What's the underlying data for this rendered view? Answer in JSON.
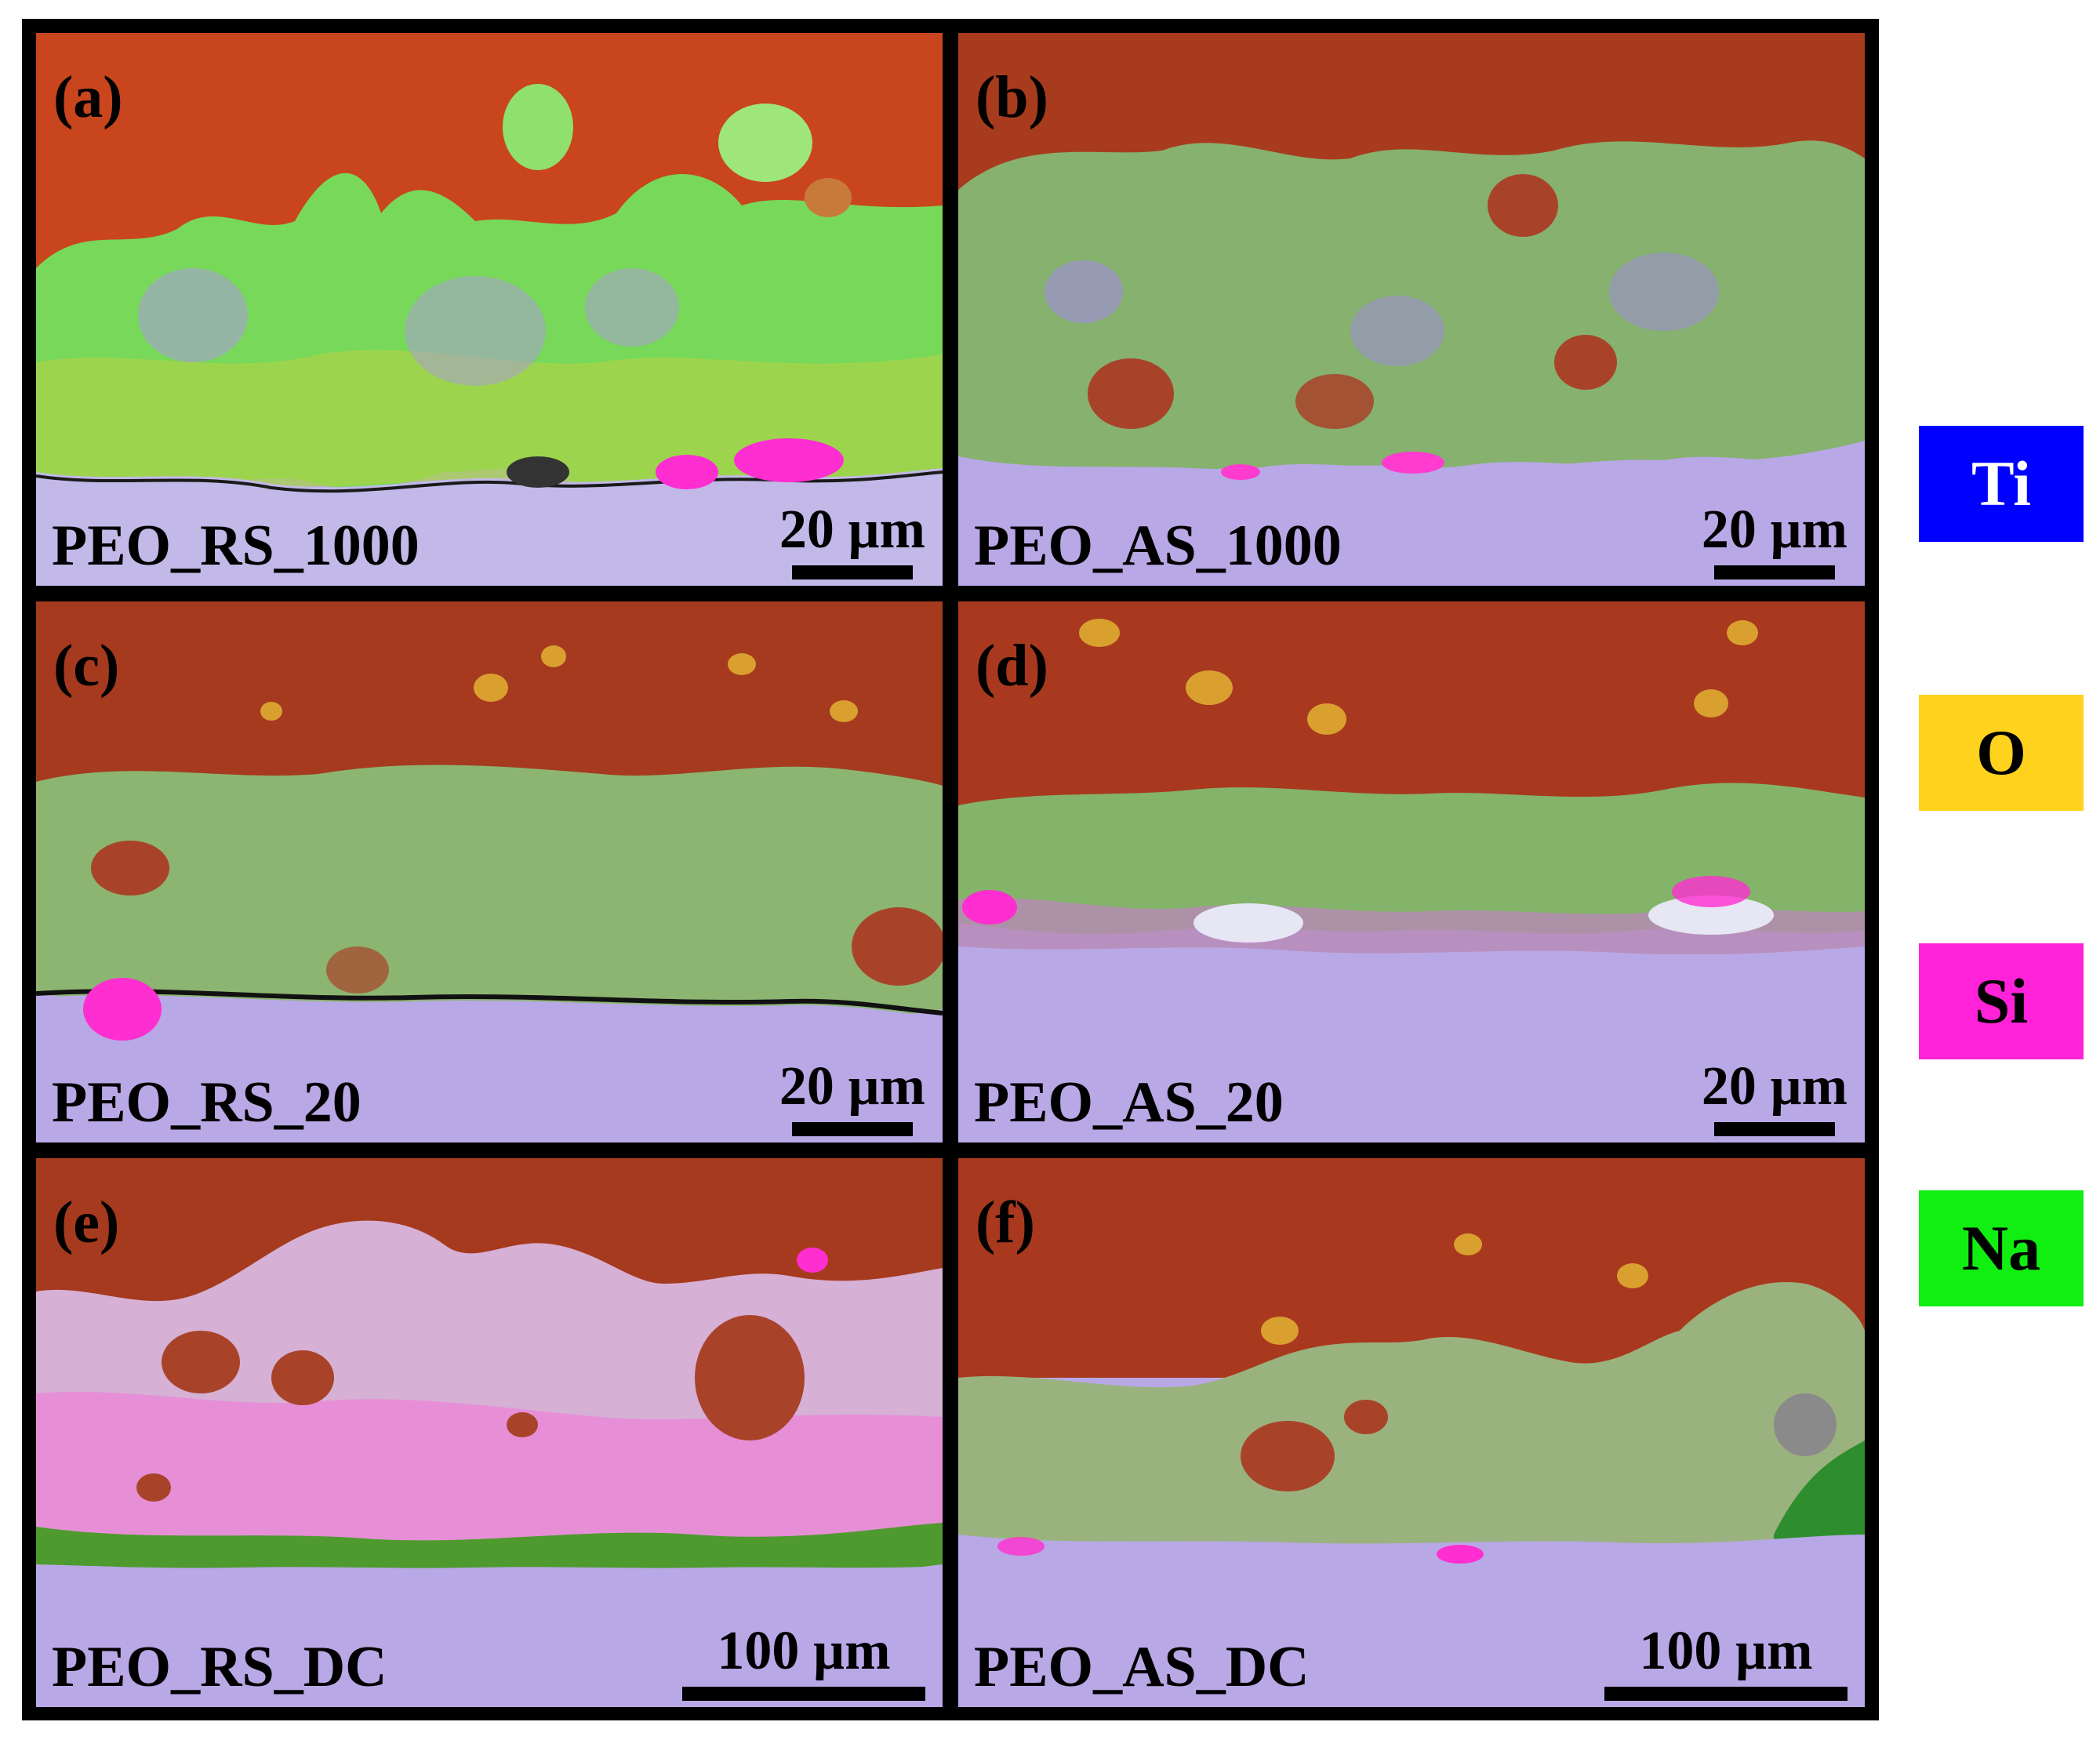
{
  "panels": [
    {
      "letter": "(a)",
      "sample": "PEO_RS_1000",
      "scale": "20 µm"
    },
    {
      "letter": "(b)",
      "sample": "PEO_AS_1000",
      "scale": "20 µm"
    },
    {
      "letter": "(c)",
      "sample": "PEO_RS_20",
      "scale": "20 µm"
    },
    {
      "letter": "(d)",
      "sample": "PEO_AS_20",
      "scale": "20 µm"
    },
    {
      "letter": "(e)",
      "sample": "PEO_RS_DC",
      "scale": "100 µm"
    },
    {
      "letter": "(f)",
      "sample": "PEO_AS_DC",
      "scale": "100 µm"
    }
  ],
  "legend": [
    {
      "element": "Ti",
      "color": "#0000ff",
      "text_color": "#ffffff"
    },
    {
      "element": "O",
      "color": "#ffd21e",
      "text_color": "#000000"
    },
    {
      "element": "Si",
      "color": "#ff22d8",
      "text_color": "#000000"
    },
    {
      "element": "Na",
      "color": "#11ee11",
      "text_color": "#000000"
    }
  ],
  "colors": {
    "resin": "#a63a1e",
    "resin_top": "#c4481f",
    "coating_green": "#7fb86a",
    "coating_bright_green": "#55e850",
    "substrate": "#b8a8e6",
    "si_magenta": "#ff3ccf",
    "o_particles": "#d9a030",
    "frame": "#000000"
  }
}
